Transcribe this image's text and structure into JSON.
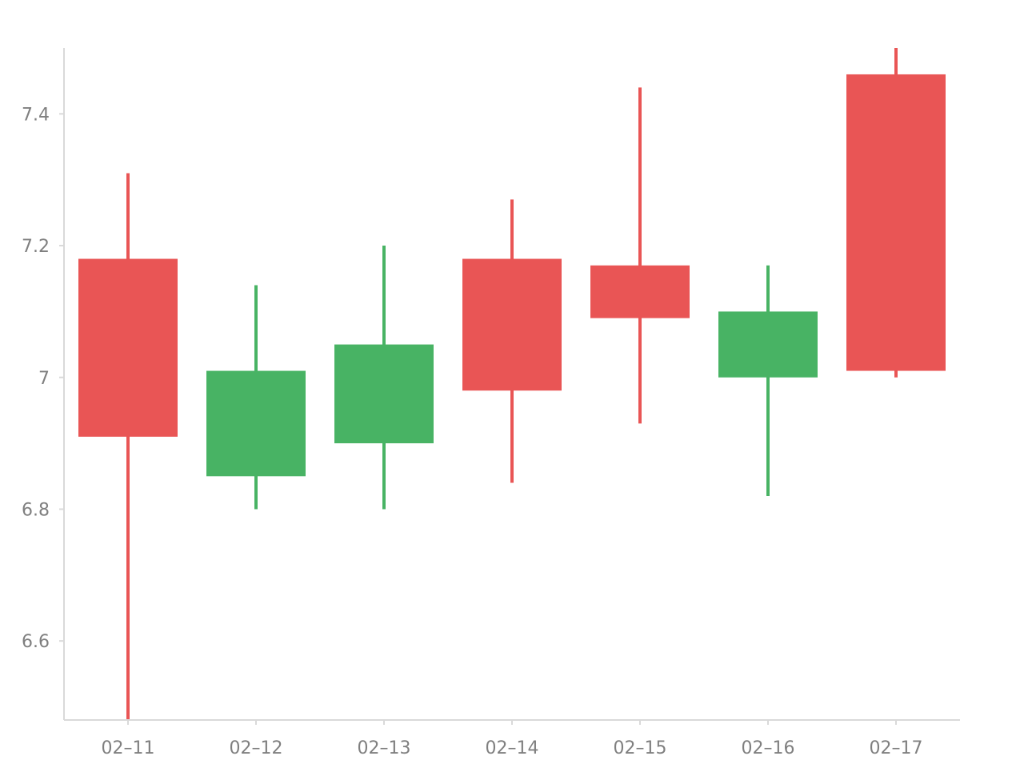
{
  "chart_data": {
    "type": "candlestick",
    "title": "",
    "xlabel": "",
    "ylabel": "",
    "categories": [
      "02-11",
      "02-12",
      "02-13",
      "02-14",
      "02-15",
      "02-16",
      "02-17"
    ],
    "x_tick_labels": [
      "02–11",
      "02–12",
      "02–13",
      "02–14",
      "02–15",
      "02–16",
      "02–17"
    ],
    "series": [
      {
        "points": [
          {
            "x": "02-11",
            "open": 6.91,
            "close": 7.18,
            "low": 6.48,
            "high": 7.31
          },
          {
            "x": "02-12",
            "open": 7.01,
            "close": 6.85,
            "low": 6.8,
            "high": 7.14
          },
          {
            "x": "02-13",
            "open": 7.05,
            "close": 6.9,
            "low": 6.8,
            "high": 7.2
          },
          {
            "x": "02-14",
            "open": 6.98,
            "close": 7.18,
            "low": 6.84,
            "high": 7.27
          },
          {
            "x": "02-15",
            "open": 7.09,
            "close": 7.17,
            "low": 6.93,
            "high": 7.44
          },
          {
            "x": "02-16",
            "open": 7.1,
            "close": 7.0,
            "low": 6.82,
            "high": 7.17
          },
          {
            "x": "02-17",
            "open": 7.01,
            "close": 7.46,
            "low": 7.0,
            "high": 7.5
          }
        ]
      }
    ],
    "ylim": [
      6.48,
      7.5
    ],
    "y_ticks": [
      6.6,
      6.8,
      7.0,
      7.2,
      7.4
    ],
    "y_tick_labels": [
      "6.6",
      "6.8",
      "7",
      "7.2",
      "7.4"
    ],
    "grid": false,
    "legend": "none",
    "colors": {
      "up": "#e95555",
      "down": "#48b364",
      "axis": "#d9d9d9",
      "text": "#7f7f7f"
    }
  }
}
